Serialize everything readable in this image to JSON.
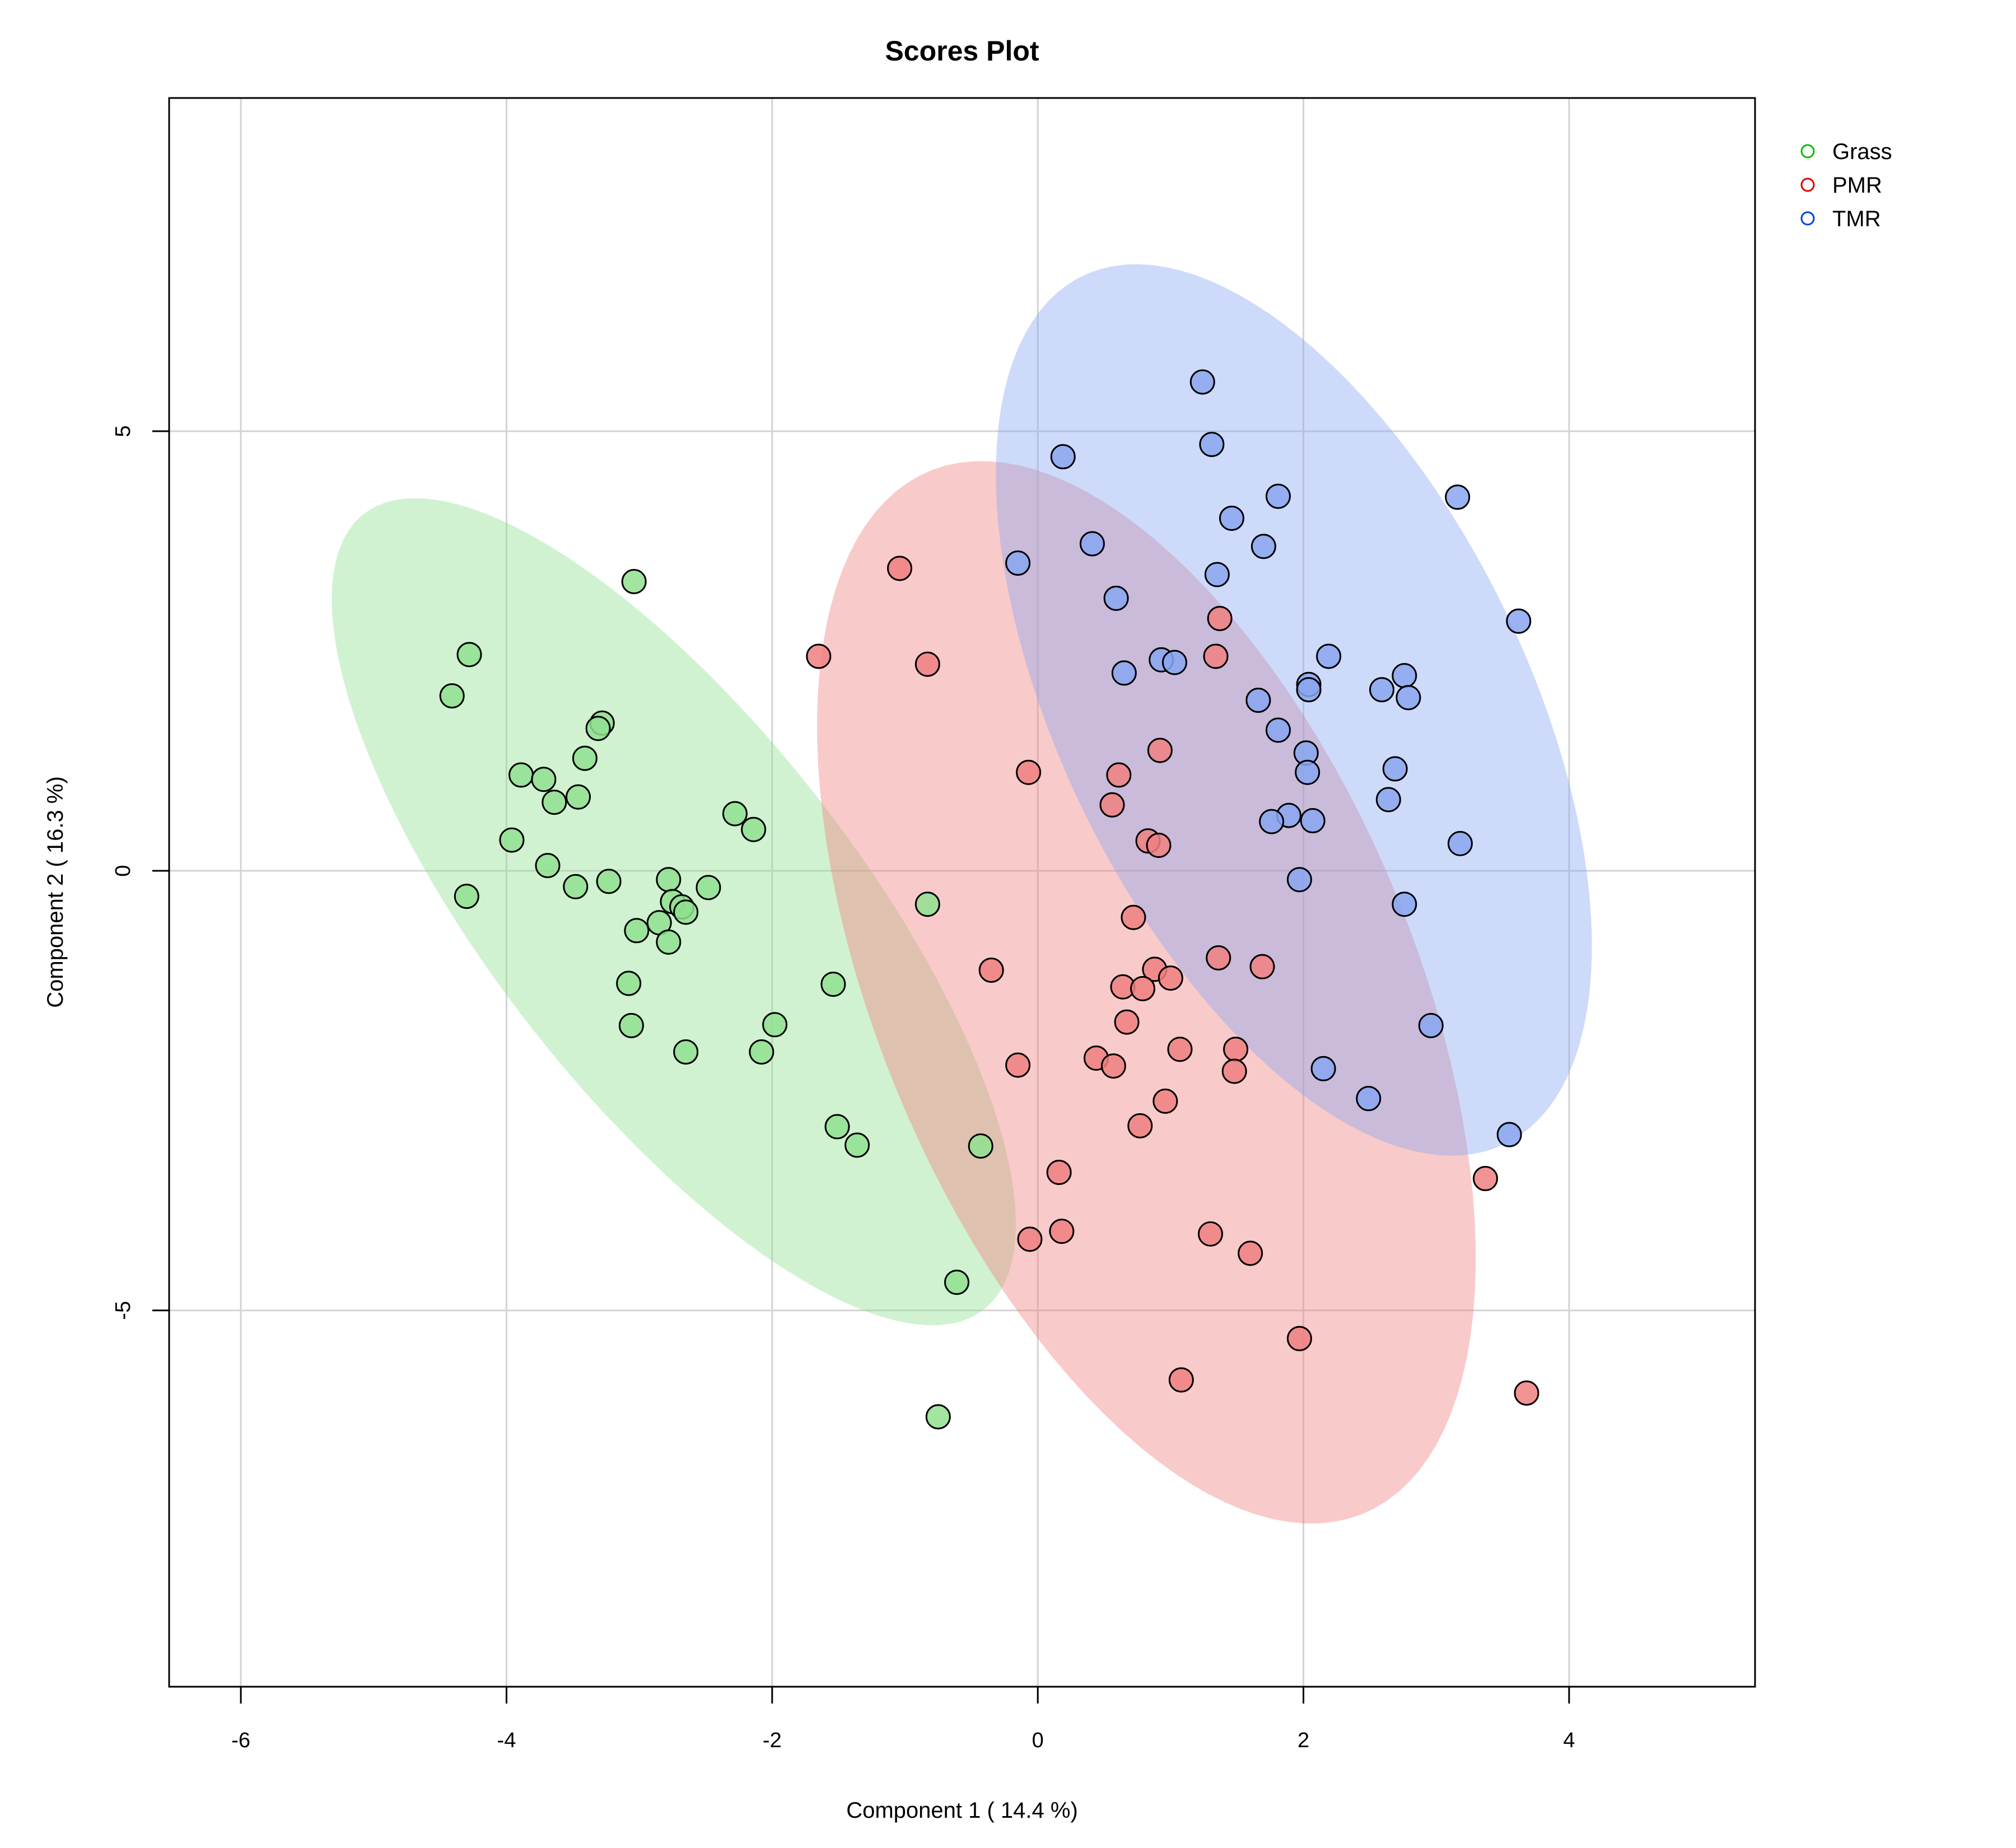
{
  "chart_data": {
    "type": "scatter",
    "title": "Scores Plot",
    "xlabel": "Component 1 ( 14.4 %)",
    "ylabel": "Component 2 ( 16.3 %)",
    "xlim": [
      -6.54,
      5.4
    ],
    "ylim": [
      -9.28,
      8.79
    ],
    "xticks": [
      -6,
      -4,
      -2,
      0,
      2,
      4
    ],
    "yticks": [
      -5,
      0,
      5
    ],
    "grid": true,
    "legend_position": "right",
    "confidence_ellipses": true,
    "series": [
      {
        "name": "Grass",
        "color": "#00C000",
        "fill": "#90E090",
        "points": [
          [
            -3.04,
            3.29
          ],
          [
            -4.28,
            2.46
          ],
          [
            -4.41,
            1.99
          ],
          [
            -3.28,
            1.68
          ],
          [
            -3.31,
            1.62
          ],
          [
            -3.41,
            1.28
          ],
          [
            -3.89,
            1.09
          ],
          [
            -3.72,
            1.04
          ],
          [
            -3.46,
            0.84
          ],
          [
            -3.64,
            0.78
          ],
          [
            -2.28,
            0.65
          ],
          [
            -2.14,
            0.47
          ],
          [
            -3.96,
            0.35
          ],
          [
            -3.69,
            0.06
          ],
          [
            -2.78,
            -0.1
          ],
          [
            -3.23,
            -0.12
          ],
          [
            -3.48,
            -0.18
          ],
          [
            -2.48,
            -0.19
          ],
          [
            -4.3,
            -0.29
          ],
          [
            -2.75,
            -0.35
          ],
          [
            -2.68,
            -0.41
          ],
          [
            -2.65,
            -0.47
          ],
          [
            -2.85,
            -0.59
          ],
          [
            -3.02,
            -0.68
          ],
          [
            -2.78,
            -0.81
          ],
          [
            -0.83,
            -0.38
          ],
          [
            -3.08,
            -1.28
          ],
          [
            -1.54,
            -1.29
          ],
          [
            -3.06,
            -1.76
          ],
          [
            -1.98,
            -1.75
          ],
          [
            -2.65,
            -2.06
          ],
          [
            -2.08,
            -2.06
          ],
          [
            -1.51,
            -2.91
          ],
          [
            -1.36,
            -3.12
          ],
          [
            -0.43,
            -3.13
          ],
          [
            -0.61,
            -4.68
          ],
          [
            -0.75,
            -6.21
          ]
        ]
      },
      {
        "name": "PMR",
        "color": "#E00000",
        "fill": "#F08080",
        "points": [
          [
            -1.04,
            3.44
          ],
          [
            -1.65,
            2.44
          ],
          [
            -0.83,
            2.35
          ],
          [
            1.37,
            2.87
          ],
          [
            1.34,
            2.44
          ],
          [
            0.92,
            1.37
          ],
          [
            -0.07,
            1.12
          ],
          [
            0.61,
            1.09
          ],
          [
            0.56,
            0.75
          ],
          [
            0.83,
            0.34
          ],
          [
            0.91,
            0.29
          ],
          [
            0.72,
            -0.53
          ],
          [
            1.36,
            -0.99
          ],
          [
            1.69,
            -1.09
          ],
          [
            -0.35,
            -1.13
          ],
          [
            0.88,
            -1.12
          ],
          [
            1.0,
            -1.22
          ],
          [
            0.64,
            -1.32
          ],
          [
            0.79,
            -1.34
          ],
          [
            0.67,
            -1.72
          ],
          [
            1.07,
            -2.03
          ],
          [
            1.49,
            -2.03
          ],
          [
            0.44,
            -2.13
          ],
          [
            0.57,
            -2.22
          ],
          [
            1.48,
            -2.28
          ],
          [
            -0.15,
            -2.21
          ],
          [
            0.96,
            -2.62
          ],
          [
            0.77,
            -2.9
          ],
          [
            3.37,
            -3.5
          ],
          [
            0.16,
            -3.43
          ],
          [
            0.18,
            -4.1
          ],
          [
            -0.06,
            -4.19
          ],
          [
            1.3,
            -4.13
          ],
          [
            1.6,
            -4.35
          ],
          [
            1.97,
            -5.32
          ],
          [
            1.08,
            -5.79
          ],
          [
            3.68,
            -5.94
          ]
        ]
      },
      {
        "name": "TMR",
        "color": "#0040E0",
        "fill": "#8AA6F0",
        "points": [
          [
            1.24,
            5.56
          ],
          [
            1.31,
            4.85
          ],
          [
            0.19,
            4.71
          ],
          [
            1.81,
            4.26
          ],
          [
            3.16,
            4.25
          ],
          [
            1.46,
            4.01
          ],
          [
            0.41,
            3.72
          ],
          [
            1.7,
            3.69
          ],
          [
            -0.15,
            3.5
          ],
          [
            1.35,
            3.37
          ],
          [
            0.59,
            3.1
          ],
          [
            3.62,
            2.84
          ],
          [
            2.19,
            2.44
          ],
          [
            0.93,
            2.4
          ],
          [
            1.03,
            2.37
          ],
          [
            0.65,
            2.25
          ],
          [
            2.76,
            2.22
          ],
          [
            2.04,
            2.12
          ],
          [
            2.04,
            2.06
          ],
          [
            2.59,
            2.06
          ],
          [
            2.79,
            1.97
          ],
          [
            1.66,
            1.94
          ],
          [
            1.81,
            1.6
          ],
          [
            2.02,
            1.34
          ],
          [
            2.69,
            1.16
          ],
          [
            2.03,
            1.12
          ],
          [
            2.64,
            0.81
          ],
          [
            1.89,
            0.63
          ],
          [
            2.07,
            0.57
          ],
          [
            1.76,
            0.56
          ],
          [
            3.18,
            0.31
          ],
          [
            1.97,
            -0.1
          ],
          [
            2.76,
            -0.38
          ],
          [
            2.96,
            -1.76
          ],
          [
            2.15,
            -2.25
          ],
          [
            2.49,
            -2.59
          ],
          [
            3.55,
            -3.0
          ]
        ]
      }
    ]
  }
}
